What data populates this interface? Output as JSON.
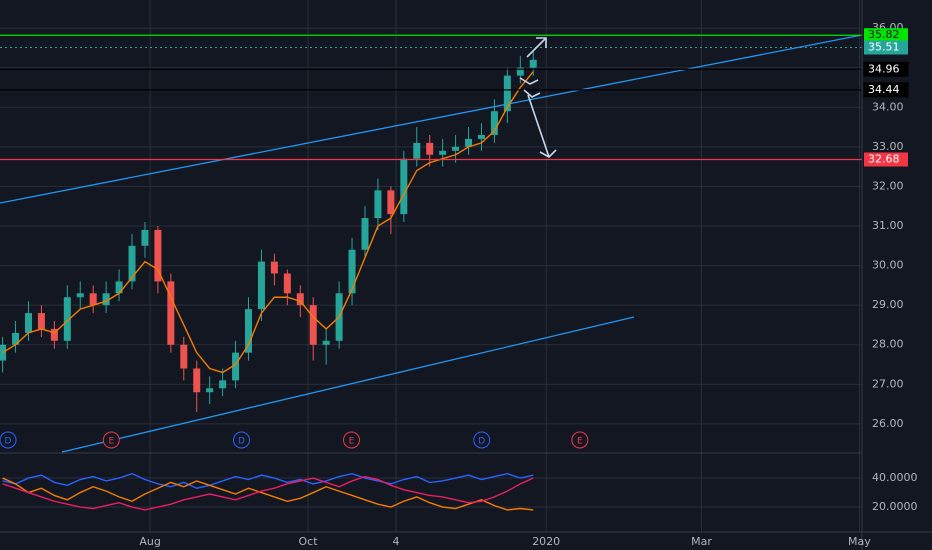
{
  "chart_data": [
    {
      "type": "candlestick",
      "xlim": [
        3,
        336
      ],
      "xticks": [
        {
          "value": 61,
          "label": "Aug"
        },
        {
          "value": 122,
          "label": "Oct"
        },
        {
          "value": 156,
          "label": "4"
        },
        {
          "value": 214,
          "label": "2020"
        },
        {
          "value": 274,
          "label": "Mar"
        },
        {
          "value": 335,
          "label": "May"
        }
      ],
      "ylim": [
        25.29,
        36.71
      ],
      "yticks": [
        {
          "value": 26,
          "label": "26.00"
        },
        {
          "value": 27,
          "label": "27.00"
        },
        {
          "value": 28,
          "label": "28.00"
        },
        {
          "value": 29,
          "label": "29.00"
        },
        {
          "value": 30,
          "label": "30.00"
        },
        {
          "value": 31,
          "label": "31.00"
        },
        {
          "value": 32,
          "label": "32.00"
        },
        {
          "value": 33,
          "label": "33.00"
        },
        {
          "value": 34,
          "label": "34.00"
        },
        {
          "value": 35,
          "label": "35.00"
        },
        {
          "value": 36,
          "label": "36.00"
        }
      ],
      "grid": true,
      "up_color": "#26a69a",
      "down_color": "#ef5350",
      "x": [
        4,
        9,
        14,
        19,
        24,
        29,
        34,
        39,
        44,
        49,
        54,
        59,
        64,
        69,
        74,
        79,
        84,
        89,
        94,
        99,
        104,
        109,
        114,
        119,
        124,
        129,
        134,
        139,
        144,
        149,
        154,
        159,
        164,
        169,
        174,
        179,
        184,
        189,
        194,
        199,
        204,
        209
      ],
      "open": [
        27.6,
        28.0,
        28.3,
        28.8,
        28.4,
        28.1,
        29.2,
        29.3,
        29.0,
        29.3,
        29.6,
        30.5,
        30.9,
        29.6,
        28.0,
        27.4,
        26.8,
        26.9,
        27.1,
        27.8,
        28.9,
        30.1,
        29.8,
        29.3,
        29.0,
        28.0,
        28.1,
        29.3,
        30.4,
        31.2,
        31.9,
        31.3,
        32.7,
        33.1,
        32.8,
        32.9,
        33.0,
        33.2,
        33.3,
        33.9,
        34.8,
        35.0
      ],
      "high": [
        28.2,
        28.6,
        29.1,
        29.0,
        28.6,
        29.5,
        29.6,
        29.5,
        29.6,
        29.9,
        30.8,
        31.1,
        31.0,
        29.8,
        28.2,
        27.6,
        27.2,
        27.4,
        28.1,
        29.2,
        30.4,
        30.3,
        29.9,
        29.5,
        29.2,
        28.4,
        29.6,
        30.7,
        31.5,
        32.2,
        32.0,
        32.9,
        33.5,
        33.3,
        33.2,
        33.3,
        33.5,
        33.6,
        34.2,
        35.0,
        35.3,
        35.4
      ],
      "low": [
        27.3,
        27.8,
        28.1,
        28.2,
        27.9,
        27.9,
        28.9,
        28.8,
        28.8,
        29.1,
        29.4,
        30.2,
        29.3,
        27.8,
        27.1,
        26.3,
        26.5,
        26.7,
        26.9,
        27.6,
        28.6,
        29.5,
        29.0,
        28.7,
        27.6,
        27.5,
        27.9,
        29.0,
        30.2,
        30.9,
        30.8,
        31.1,
        32.5,
        32.5,
        32.5,
        32.6,
        32.8,
        32.9,
        33.1,
        33.6,
        34.6,
        34.8
      ],
      "close": [
        28.0,
        28.3,
        28.8,
        28.4,
        28.1,
        29.2,
        29.3,
        29.0,
        29.3,
        29.6,
        30.5,
        30.9,
        29.6,
        28.0,
        27.4,
        26.8,
        26.9,
        27.1,
        27.8,
        28.9,
        30.1,
        29.8,
        29.3,
        29.0,
        28.0,
        28.1,
        29.3,
        30.4,
        31.2,
        31.9,
        31.3,
        32.7,
        33.1,
        32.8,
        32.9,
        33.0,
        33.2,
        33.3,
        33.9,
        34.8,
        35.0,
        35.2
      ],
      "series": [
        {
          "color": "#f57c00",
          "values": [
            27.8,
            28.0,
            28.3,
            28.4,
            28.3,
            28.6,
            28.9,
            29.0,
            29.1,
            29.3,
            29.7,
            30.1,
            29.9,
            29.2,
            28.5,
            27.8,
            27.4,
            27.3,
            27.5,
            28.0,
            28.8,
            29.2,
            29.2,
            29.1,
            28.7,
            28.4,
            28.7,
            29.4,
            30.2,
            31.0,
            31.2,
            31.8,
            32.4,
            32.6,
            32.7,
            32.8,
            33.0,
            33.1,
            33.4,
            34.0,
            34.5,
            34.9
          ]
        }
      ],
      "price_lines": [
        {
          "value": 35.82,
          "color": "#00e600",
          "text_color": "#131722",
          "dashed": false
        },
        {
          "value": 35.51,
          "color": "#26a69a",
          "text_color": "#ffffff",
          "dashed": true
        },
        {
          "value": 34.96,
          "color": "#000000",
          "text_color": "#ffffff",
          "dashed": false
        },
        {
          "value": 34.44,
          "color": "#000000",
          "text_color": "#ffffff",
          "dashed": false
        },
        {
          "value": 32.68,
          "color": "#f23645",
          "text_color": "#ffffff",
          "dashed": false
        }
      ],
      "events": [
        {
          "label": "D",
          "x": 6.1,
          "color": "#2962ff"
        },
        {
          "label": "E",
          "x": 46,
          "color": "#f23645"
        },
        {
          "label": "D",
          "x": 96.3,
          "color": "#2962ff"
        },
        {
          "label": "E",
          "x": 138.8,
          "color": "#f23645"
        },
        {
          "label": "D",
          "x": 189.1,
          "color": "#2962ff"
        },
        {
          "label": "E",
          "x": 227,
          "color": "#f23645"
        }
      ]
    },
    {
      "type": "line",
      "ylim": [
        2.8,
        55.9
      ],
      "yticks": [
        {
          "value": 20,
          "label": "20.0000"
        },
        {
          "value": 40,
          "label": "40.0000"
        }
      ],
      "series": [
        {
          "color": "#2962ff",
          "values": [
            38,
            36,
            40,
            42,
            37,
            35,
            39,
            41,
            38,
            40,
            43,
            39,
            36,
            34,
            37,
            33,
            35,
            38,
            41,
            39,
            42,
            40,
            37,
            39,
            36,
            38,
            41,
            43,
            40,
            38,
            36,
            39,
            41,
            37,
            38,
            40,
            42,
            39,
            41,
            43,
            40,
            42
          ]
        },
        {
          "color": "#f57c00",
          "values": [
            40,
            36,
            30,
            33,
            28,
            25,
            30,
            34,
            31,
            27,
            24,
            29,
            33,
            37,
            34,
            38,
            35,
            32,
            29,
            33,
            30,
            27,
            24,
            26,
            30,
            34,
            31,
            28,
            25,
            22,
            20,
            24,
            27,
            23,
            20,
            19,
            22,
            25,
            21,
            18,
            19,
            18
          ]
        },
        {
          "color": "#e91e63",
          "values": [
            36,
            33,
            30,
            27,
            24,
            22,
            20,
            19,
            21,
            23,
            20,
            18,
            20,
            22,
            25,
            27,
            29,
            27,
            25,
            28,
            31,
            33,
            36,
            38,
            40,
            37,
            34,
            38,
            41,
            39,
            35,
            32,
            30,
            28,
            27,
            25,
            23,
            24,
            27,
            31,
            36,
            40
          ]
        }
      ]
    }
  ]
}
